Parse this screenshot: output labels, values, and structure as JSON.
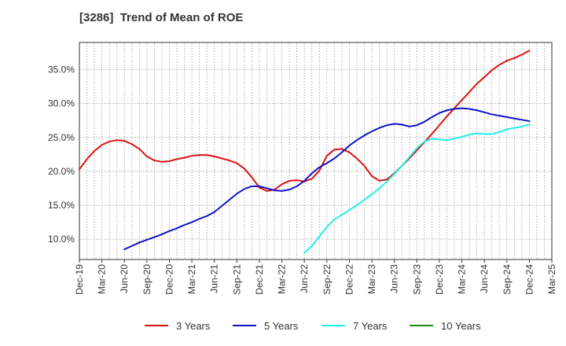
{
  "chart_data": {
    "type": "line",
    "title": "[3286]  Trend of Mean of ROE",
    "xlabel": "",
    "ylabel": "",
    "x_ticks": [
      "Dec-19",
      "Mar-20",
      "Jun-20",
      "Sep-20",
      "Dec-20",
      "Mar-21",
      "Jun-21",
      "Sep-21",
      "Dec-21",
      "Mar-22",
      "Jun-22",
      "Sep-22",
      "Dec-22",
      "Mar-23",
      "Jun-23",
      "Sep-23",
      "Dec-23",
      "Mar-24",
      "Jun-24",
      "Sep-24",
      "Dec-24",
      "Mar-25"
    ],
    "x_range": [
      0,
      63
    ],
    "y_ticks": [
      10,
      15,
      20,
      25,
      30,
      35
    ],
    "y_tick_labels": [
      "10.0%",
      "15.0%",
      "20.0%",
      "25.0%",
      "30.0%",
      "35.0%"
    ],
    "ylim": [
      7.0,
      39.0
    ],
    "grid": true,
    "legend_position": "bottom",
    "series": [
      {
        "name": "3 Years",
        "color": "#dd1111",
        "x": [
          0,
          1,
          2,
          3,
          4,
          5,
          6,
          7,
          8,
          9,
          10,
          11,
          12,
          13,
          14,
          15,
          16,
          17,
          18,
          19,
          20,
          21,
          22,
          23,
          24,
          25,
          26,
          27,
          28,
          29,
          30,
          31,
          32,
          33,
          34,
          35,
          36,
          37,
          38,
          39,
          40,
          41,
          42,
          43,
          44,
          45,
          46,
          47,
          48,
          49,
          50,
          51,
          52,
          53,
          54,
          55,
          56,
          57,
          58,
          59,
          60
        ],
        "values": [
          20.3,
          21.8,
          23.0,
          23.9,
          24.4,
          24.6,
          24.5,
          24.0,
          23.3,
          22.2,
          21.6,
          21.4,
          21.5,
          21.8,
          22.0,
          22.3,
          22.4,
          22.4,
          22.2,
          21.9,
          21.6,
          21.2,
          20.4,
          19.1,
          17.6,
          17.1,
          17.3,
          18.1,
          18.6,
          18.7,
          18.5,
          18.9,
          20.1,
          22.3,
          23.2,
          23.3,
          22.8,
          21.9,
          20.8,
          19.3,
          18.6,
          18.8,
          19.7,
          20.8,
          21.9,
          23.1,
          24.3,
          25.5,
          26.8,
          28.1,
          29.3,
          30.5,
          31.7,
          32.9,
          33.9,
          34.9,
          35.7,
          36.3,
          36.7,
          37.2,
          37.8
        ]
      },
      {
        "name": "5 Years",
        "color": "#1111cc",
        "x": [
          6,
          7,
          8,
          9,
          10,
          11,
          12,
          13,
          14,
          15,
          16,
          17,
          18,
          19,
          20,
          21,
          22,
          23,
          24,
          25,
          26,
          27,
          28,
          29,
          30,
          31,
          32,
          33,
          34,
          35,
          36,
          37,
          38,
          39,
          40,
          41,
          42,
          43,
          44,
          45,
          46,
          47,
          48,
          49,
          50,
          51,
          52,
          53,
          54,
          55,
          56,
          57,
          58,
          59,
          60
        ],
        "values": [
          8.5,
          9.0,
          9.5,
          9.9,
          10.3,
          10.7,
          11.2,
          11.6,
          12.1,
          12.5,
          13.0,
          13.4,
          14.0,
          14.9,
          15.8,
          16.7,
          17.4,
          17.8,
          17.8,
          17.5,
          17.2,
          17.1,
          17.3,
          17.8,
          18.6,
          19.7,
          20.6,
          21.2,
          21.9,
          22.8,
          23.8,
          24.6,
          25.3,
          25.9,
          26.4,
          26.8,
          27.0,
          26.9,
          26.6,
          26.8,
          27.3,
          28.0,
          28.6,
          29.0,
          29.2,
          29.3,
          29.2,
          29.0,
          28.7,
          28.4,
          28.2,
          28.0,
          27.8,
          27.6,
          27.4
        ]
      },
      {
        "name": "7 Years",
        "color": "#22eeee",
        "x": [
          30,
          31,
          32,
          33,
          34,
          35,
          36,
          37,
          38,
          39,
          40,
          41,
          42,
          43,
          44,
          45,
          46,
          47,
          48,
          49,
          50,
          51,
          52,
          53,
          54,
          55,
          56,
          57,
          58,
          59,
          60
        ],
        "values": [
          8.0,
          9.0,
          10.4,
          11.8,
          12.9,
          13.6,
          14.3,
          15.0,
          15.8,
          16.6,
          17.5,
          18.5,
          19.6,
          20.8,
          22.1,
          23.4,
          24.4,
          24.8,
          24.7,
          24.6,
          24.8,
          25.1,
          25.4,
          25.6,
          25.5,
          25.5,
          25.8,
          26.2,
          26.4,
          26.6,
          26.9
        ]
      },
      {
        "name": "10 Years",
        "color": "#228822",
        "x": [],
        "values": []
      }
    ]
  }
}
